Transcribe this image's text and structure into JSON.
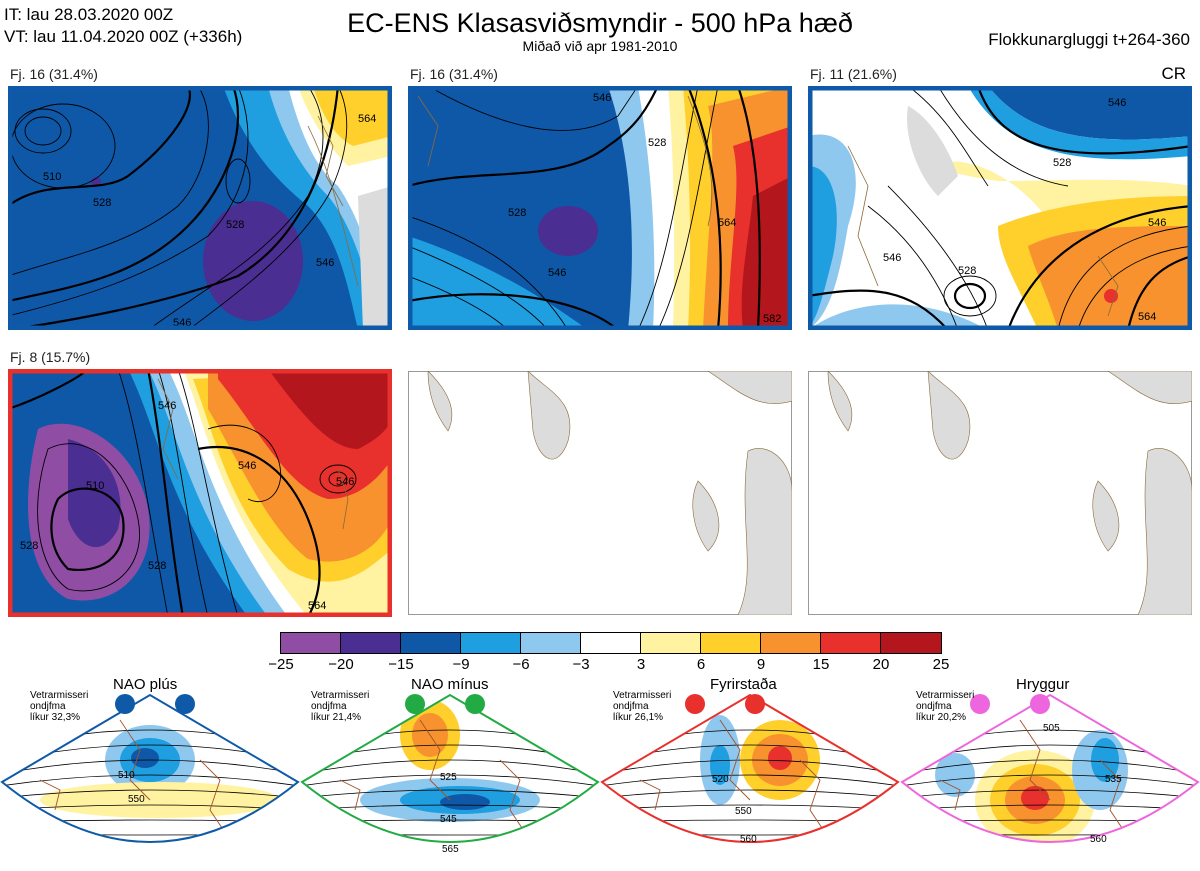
{
  "header": {
    "it": "IT: lau 28.03.2020 00Z",
    "vt": "VT: lau 11.04.2020 00Z  (+336h)",
    "title": "EC-ENS Klasasviðsmyndir - 500 hPa hæð",
    "subtitle": "Miðað við apr 1981-2010",
    "window": "Flokkunargluggi t+264-360",
    "cr": "CR"
  },
  "panels": [
    {
      "label": "Fj. 16 (31.4%)",
      "border": "#0e5aa8",
      "contours": [
        "510",
        "528",
        "528",
        "546",
        "564",
        "546"
      ]
    },
    {
      "label": "Fj. 16 (31.4%)",
      "border": "#0e5aa8",
      "contours": [
        "528",
        "528",
        "546",
        "564",
        "546",
        "582"
      ]
    },
    {
      "label": "Fj. 11 (21.6%)",
      "border": "#0e5aa8",
      "contours": [
        "528",
        "546",
        "528",
        "546",
        "564",
        "546"
      ]
    },
    {
      "label": "Fj. 8 (15.7%)",
      "border": "#e8302c",
      "contours": [
        "510",
        "528",
        "528",
        "546",
        "546",
        "546",
        "564"
      ]
    }
  ],
  "colorbar": {
    "colors": [
      "#8f4ea4",
      "#4a2e92",
      "#0f58a8",
      "#1f9ee0",
      "#8fc8ee",
      "#ffffff",
      "#fff2a0",
      "#ffd02c",
      "#f7922f",
      "#e8302c",
      "#b3161c"
    ],
    "ticks": [
      "−25",
      "−20",
      "−15",
      "−9",
      "−6",
      "−3",
      "3",
      "6",
      "9",
      "15",
      "20",
      "25"
    ]
  },
  "regimes": [
    {
      "title": "NAO plús",
      "meta": [
        "Vetrarmisseri",
        "ondjfma",
        "líkur 32,3%"
      ],
      "color": "#0e5aa8",
      "contours": [
        "510",
        "550"
      ]
    },
    {
      "title": "NAO mínus",
      "meta": [
        "Vetrarmisseri",
        "ondjfma",
        "líkur 21,4%"
      ],
      "color": "#22aa44",
      "contours": [
        "525",
        "545",
        "565"
      ]
    },
    {
      "title": "Fyrirstaða",
      "meta": [
        "Vetrarmisseri",
        "ondjfma",
        "líkur 26,1%"
      ],
      "color": "#e8302c",
      "contours": [
        "520",
        "550",
        "560"
      ]
    },
    {
      "title": "Hryggur",
      "meta": [
        "Vetrarmisseri",
        "ondjfma",
        "líkur 20,2%"
      ],
      "color": "#ee66dd",
      "contours": [
        "505",
        "535",
        "560"
      ]
    }
  ]
}
